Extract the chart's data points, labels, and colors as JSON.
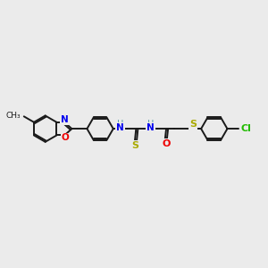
{
  "bg_color": "#ebebeb",
  "bond_color": "#1a1a1a",
  "N_color": "#0000ee",
  "O_color": "#ee0000",
  "S_color": "#aaaa00",
  "Cl_color": "#22bb00",
  "NH_color": "#5599aa",
  "line_width": 1.4,
  "figsize": [
    3.0,
    3.0
  ],
  "dpi": 100,
  "xlim": [
    0,
    10
  ],
  "ylim": [
    0,
    10
  ]
}
